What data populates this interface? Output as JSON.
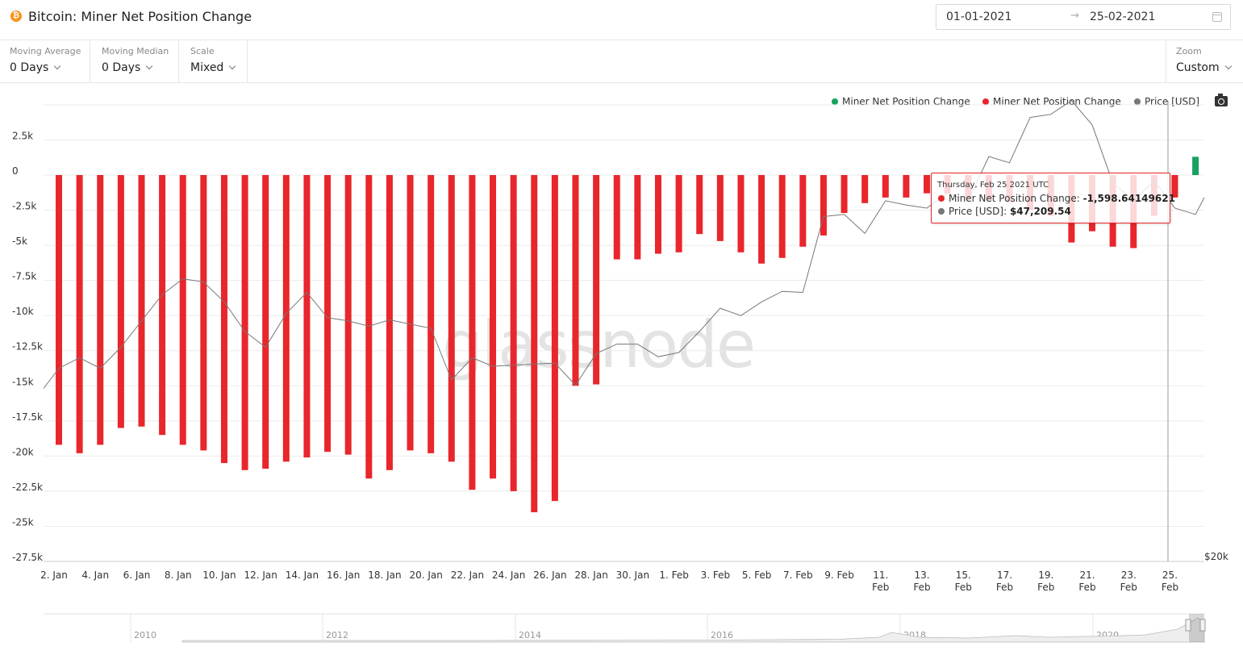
{
  "header": {
    "coin_symbol": "₿",
    "title": "Bitcoin: Miner Net Position Change",
    "date_from": "01-01-2021",
    "date_arrow": "→",
    "date_to": "25-02-2021"
  },
  "controls": {
    "moving_average": {
      "label": "Moving Average",
      "value": "0 Days"
    },
    "moving_median": {
      "label": "Moving Median",
      "value": "0 Days"
    },
    "scale": {
      "label": "Scale",
      "value": "Mixed"
    },
    "zoom": {
      "label": "Zoom",
      "value": "Custom"
    }
  },
  "legend": [
    {
      "label": "Miner Net Position Change",
      "color": "#18a160"
    },
    {
      "label": "Miner Net Position Change",
      "color": "#e8262b"
    },
    {
      "label": "Price [USD]",
      "color": "#777777"
    }
  ],
  "watermark": "glassnode",
  "tooltip": {
    "date": "Thursday, Feb 25 2021 UTC",
    "series1_label": "Miner Net Position Change: ",
    "series1_value": "-1,598.64149621",
    "series2_label": "Price [USD]: ",
    "series2_value": "$47,209.54"
  },
  "chart_data": {
    "type": "bar",
    "title": "Bitcoin: Miner Net Position Change",
    "ylim": [
      -27500,
      2500
    ],
    "y_ticks": [
      "2.5k",
      "0",
      "-2.5k",
      "-5k",
      "-7.5k",
      "-10k",
      "-12.5k",
      "-15k",
      "-17.5k",
      "-20k",
      "-22.5k",
      "-25k",
      "-27.5k"
    ],
    "y2_label": "$20k",
    "x_tick_labels": [
      "2. Jan",
      "4. Jan",
      "6. Jan",
      "8. Jan",
      "10. Jan",
      "12. Jan",
      "14. Jan",
      "16. Jan",
      "18. Jan",
      "20. Jan",
      "22. Jan",
      "24. Jan",
      "26. Jan",
      "28. Jan",
      "30. Jan",
      "1. Feb",
      "3. Feb",
      "5. Feb",
      "7. Feb",
      "9. Feb",
      "11. Feb",
      "13. Feb",
      "15. Feb",
      "17. Feb",
      "19. Feb",
      "21. Feb",
      "23. Feb",
      "25. Feb"
    ],
    "dates": [
      "2021-01-02",
      "2021-01-03",
      "2021-01-04",
      "2021-01-05",
      "2021-01-06",
      "2021-01-07",
      "2021-01-08",
      "2021-01-09",
      "2021-01-10",
      "2021-01-11",
      "2021-01-12",
      "2021-01-13",
      "2021-01-14",
      "2021-01-15",
      "2021-01-16",
      "2021-01-17",
      "2021-01-18",
      "2021-01-19",
      "2021-01-20",
      "2021-01-21",
      "2021-01-22",
      "2021-01-23",
      "2021-01-24",
      "2021-01-25",
      "2021-01-26",
      "2021-01-27",
      "2021-01-28",
      "2021-01-29",
      "2021-01-30",
      "2021-01-31",
      "2021-02-01",
      "2021-02-02",
      "2021-02-03",
      "2021-02-04",
      "2021-02-05",
      "2021-02-06",
      "2021-02-07",
      "2021-02-08",
      "2021-02-09",
      "2021-02-10",
      "2021-02-11",
      "2021-02-12",
      "2021-02-13",
      "2021-02-14",
      "2021-02-15",
      "2021-02-16",
      "2021-02-17",
      "2021-02-18",
      "2021-02-19",
      "2021-02-20",
      "2021-02-21",
      "2021-02-22",
      "2021-02-23",
      "2021-02-24",
      "2021-02-25",
      "2021-02-26"
    ],
    "series": [
      {
        "name": "Miner Net Position Change",
        "values": [
          -19200,
          -19800,
          -19200,
          -18000,
          -17900,
          -18500,
          -19200,
          -19600,
          -20500,
          -21000,
          -20900,
          -20400,
          -20100,
          -19700,
          -19900,
          -21600,
          -21000,
          -19600,
          -19800,
          -20400,
          -22400,
          -21600,
          -22500,
          -24000,
          -23200,
          -15000,
          -14900,
          -6000,
          -6000,
          -5600,
          -5500,
          -4200,
          -4700,
          -5500,
          -6300,
          -5900,
          -5100,
          -4300,
          -2700,
          -2000,
          -1600,
          -1600,
          -1300,
          -1300,
          -1700,
          -1800,
          -1900,
          -2500,
          -2900,
          -4800,
          -4000,
          -5100,
          -5200,
          -2900,
          -1600,
          1300
        ]
      },
      {
        "name": "Price [USD]",
        "values": [
          32000,
          33000,
          32000,
          34000,
          36500,
          39000,
          40500,
          40200,
          38300,
          35500,
          34000,
          37200,
          39200,
          36800,
          36500,
          36000,
          36600,
          36200,
          35800,
          30900,
          33000,
          32200,
          32300,
          32400,
          32500,
          30400,
          33400,
          34300,
          34300,
          33100,
          33500,
          35500,
          37700,
          37000,
          38300,
          39300,
          39200,
          46400,
          46600,
          44800,
          47900,
          47500,
          47200,
          48600,
          47900,
          52100,
          51500,
          55800,
          56100,
          57400,
          55100,
          49600,
          47900,
          49800,
          47200,
          46600
        ]
      }
    ]
  },
  "navigator": {
    "year_labels": [
      "2010",
      "2012",
      "2014",
      "2016",
      "2018",
      "2020"
    ]
  }
}
